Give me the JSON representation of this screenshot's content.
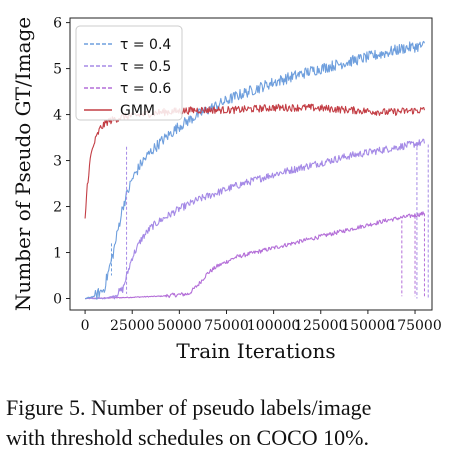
{
  "caption": {
    "line1": "Figure 5.  Number of pseudo labels/image",
    "line2": "with threshold schedules on COCO 10%."
  },
  "chart_data": {
    "type": "line",
    "title": "",
    "xlabel": "Train Iterations",
    "ylabel": "Number of Pseudo GT/Image",
    "xlim": [
      -8000,
      184000
    ],
    "ylim": [
      -0.25,
      6.1
    ],
    "x_ticks": [
      0,
      25000,
      50000,
      75000,
      100000,
      125000,
      150000,
      175000
    ],
    "x_tick_labels": [
      "0",
      "25000",
      "50000",
      "75000",
      "100000",
      "125000",
      "150000",
      "175000"
    ],
    "y_ticks": [
      0,
      1,
      2,
      3,
      4,
      5,
      6
    ],
    "y_tick_labels": [
      "0",
      "1",
      "2",
      "3",
      "4",
      "5",
      "6"
    ],
    "grid": false,
    "legend_position": "top-left",
    "series": [
      {
        "name": "τ = 0.4",
        "color": "#6f9fdd",
        "style": "solid",
        "legend_style": "dashed",
        "noise": 0.12,
        "x": [
          0,
          5000,
          10000,
          15000,
          20000,
          25000,
          30000,
          35000,
          40000,
          50000,
          60000,
          70000,
          80000,
          90000,
          100000,
          120000,
          140000,
          160000,
          170000,
          180000
        ],
        "y": [
          0,
          0.05,
          0.2,
          1.0,
          2.0,
          2.6,
          2.95,
          3.2,
          3.4,
          3.75,
          4.0,
          4.2,
          4.4,
          4.55,
          4.7,
          4.95,
          5.15,
          5.35,
          5.45,
          5.5
        ]
      },
      {
        "name": "τ = 0.5",
        "color": "#a58ae6",
        "style": "solid",
        "legend_style": "dashed",
        "noise": 0.08,
        "x": [
          0,
          10000,
          15000,
          20000,
          25000,
          30000,
          35000,
          40000,
          50000,
          60000,
          70000,
          80000,
          100000,
          120000,
          140000,
          160000,
          180000
        ],
        "y": [
          0,
          0,
          0.05,
          0.2,
          0.9,
          1.3,
          1.55,
          1.7,
          1.95,
          2.15,
          2.3,
          2.45,
          2.7,
          2.9,
          3.1,
          3.25,
          3.4
        ]
      },
      {
        "name": "τ = 0.6",
        "color": "#b46fd8",
        "style": "solid",
        "legend_style": "dashed",
        "noise": 0.045,
        "x": [
          0,
          20000,
          40000,
          55000,
          60000,
          65000,
          70000,
          75000,
          80000,
          90000,
          100000,
          120000,
          140000,
          160000,
          180000
        ],
        "y": [
          0,
          0.02,
          0.05,
          0.1,
          0.3,
          0.55,
          0.7,
          0.8,
          0.9,
          1.0,
          1.1,
          1.3,
          1.5,
          1.7,
          1.85
        ]
      },
      {
        "name": "GMM",
        "color": "#c33e45",
        "style": "solid",
        "legend_style": "solid",
        "noise": 0.08,
        "x": [
          0,
          1000,
          3000,
          5000,
          8000,
          12000,
          20000,
          40000,
          60000,
          80000,
          100000,
          120000,
          140000,
          160000,
          180000
        ],
        "y": [
          1.7,
          2.4,
          3.1,
          3.4,
          3.7,
          3.85,
          3.95,
          4.05,
          4.1,
          4.1,
          4.15,
          4.15,
          4.1,
          4.05,
          4.1
        ]
      }
    ],
    "drop_lines": [
      {
        "series": "τ = 0.4",
        "x": 14000,
        "to": 0.5,
        "from": 1.2
      },
      {
        "series": "τ = 0.5",
        "x": 22000,
        "to": 0.1,
        "from": 3.3
      },
      {
        "series": "τ = 0.5",
        "x": 176000,
        "to": 0,
        "from": 3.4
      },
      {
        "series": "τ = 0.5",
        "x": 182000,
        "to": 0,
        "from": 3.35
      },
      {
        "series": "τ = 0.6",
        "x": 168000,
        "to": 0.05,
        "from": 1.7
      },
      {
        "series": "τ = 0.6",
        "x": 175000,
        "to": 0.05,
        "from": 1.8
      },
      {
        "series": "τ = 0.6",
        "x": 180000,
        "to": 0.05,
        "from": 1.85
      }
    ]
  }
}
